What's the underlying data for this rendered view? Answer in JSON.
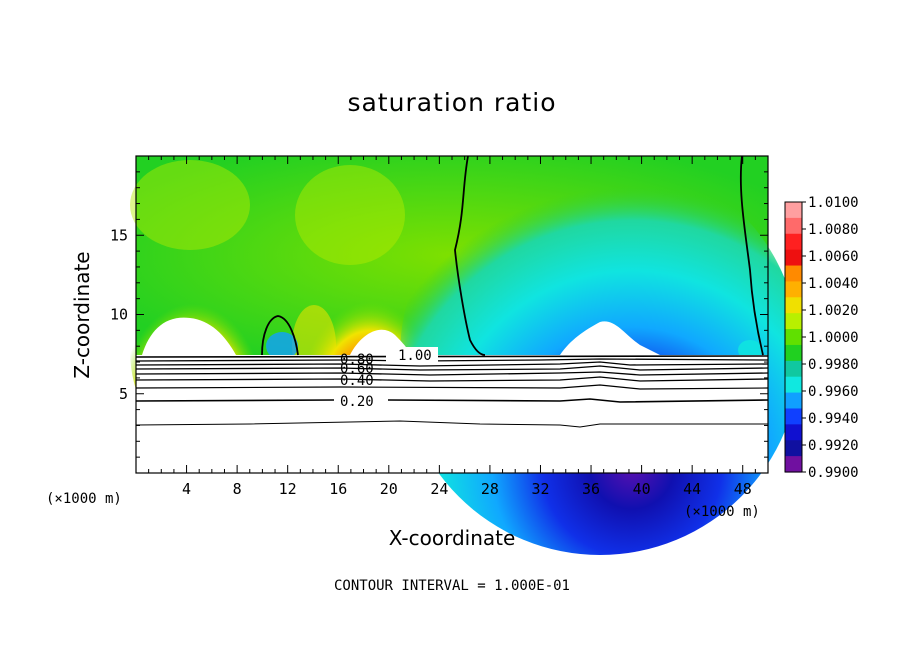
{
  "chart_data": {
    "type": "heatmap",
    "title": "saturation ratio",
    "xlabel": "X-coordinate",
    "ylabel": "Z-coordinate",
    "x_unit": "(×1000 m)",
    "z_unit": "(×1000 m)",
    "xlim": [
      0,
      50
    ],
    "ylim": [
      0,
      20
    ],
    "x_ticks": [
      4,
      8,
      12,
      16,
      20,
      24,
      28,
      32,
      36,
      40,
      44,
      48
    ],
    "y_ticks": [
      5,
      10,
      15
    ],
    "colorbar": {
      "levels": [
        "1.0100",
        "1.0080",
        "1.0060",
        "1.0040",
        "1.0020",
        "1.0000",
        "0.9980",
        "0.9960",
        "0.9940",
        "0.9920",
        "0.9900"
      ],
      "colors": [
        "#ff9fa0",
        "#ff6a6a",
        "#ff2020",
        "#ee1010",
        "#ff8a00",
        "#ffb000",
        "#f0e000",
        "#b8f000",
        "#60e000",
        "#20d020",
        "#10c8a0",
        "#10e8e0",
        "#10a0ff",
        "#1040ff",
        "#1010d0",
        "#1010a0",
        "#7010a0"
      ]
    },
    "contour_labels": [
      "1.00",
      "0.80",
      "0.60",
      "0.40",
      "0.20"
    ],
    "footnote": "CONTOUR INTERVAL = 1.000E-01"
  }
}
